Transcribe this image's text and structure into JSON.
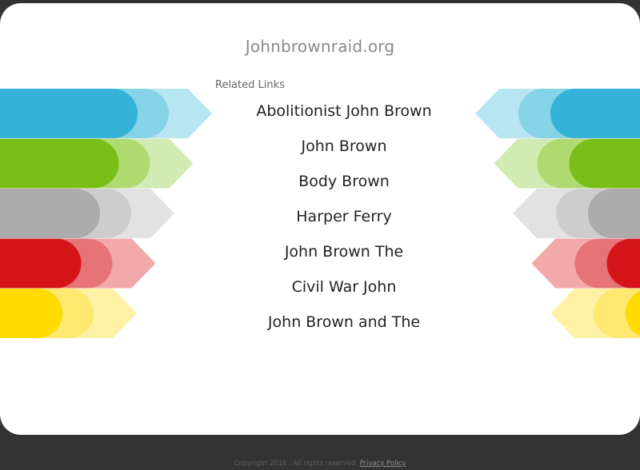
{
  "site": {
    "title": "Johnbrownraid.org"
  },
  "related": {
    "heading": "Related Links",
    "links": [
      "Abolitionist John Brown",
      "John Brown",
      "Body Brown",
      "Harper Ferry",
      "John Brown The",
      "Civil War John",
      "John Brown and The"
    ]
  },
  "footer": {
    "copyright": "Copyright 2018 . All rights reserved.",
    "privacy_label": "Privacy Policy"
  },
  "colors": {
    "stripes": [
      {
        "name": "blue",
        "dark": "#35B2D8",
        "mid": "#86D2E6",
        "light": "#B8E5F2"
      },
      {
        "name": "green",
        "dark": "#79BE18",
        "mid": "#AFDA70",
        "light": "#D1EBB2"
      },
      {
        "name": "gray",
        "dark": "#ABABAB",
        "mid": "#CDCDCD",
        "light": "#E2E2E2"
      },
      {
        "name": "red",
        "dark": "#D41418",
        "mid": "#E67476",
        "light": "#F2A9AA"
      },
      {
        "name": "yellow",
        "dark": "#FFDB00",
        "mid": "#FFE870",
        "light": "#FFF2A6"
      }
    ]
  }
}
